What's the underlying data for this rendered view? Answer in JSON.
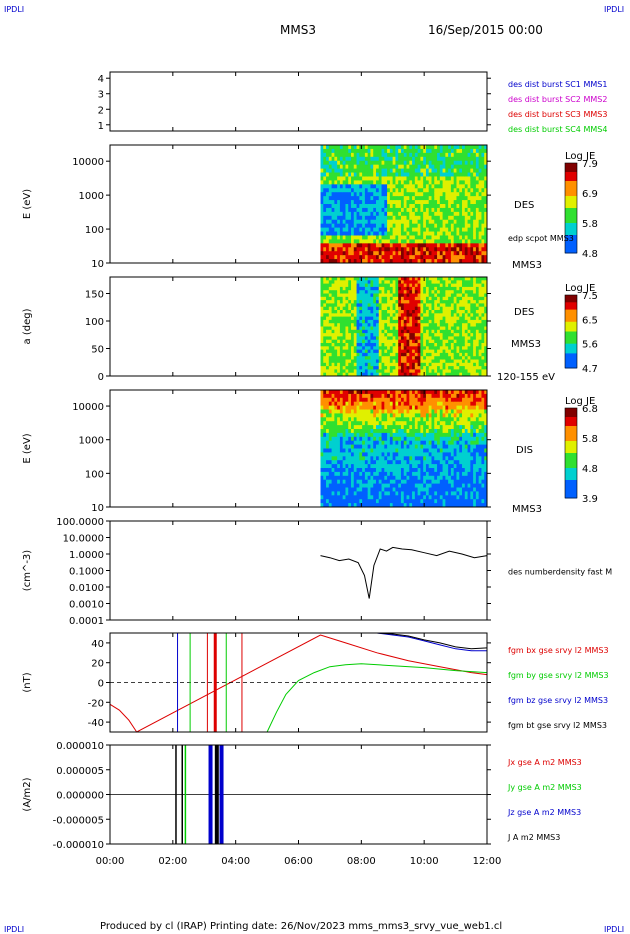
{
  "header": {
    "corner_left": "IPDLI",
    "corner_right": "IPDLI",
    "corner_bottom_left": "IPDLI",
    "corner_bottom_right": "IPDLI",
    "spacecraft": "MMS3",
    "date": "16/Sep/2015 00:00"
  },
  "footer": {
    "text": "Produced by cl (IRAP)   Printing date: 26/Nov/2023   mms_mms3_srvy_vue_web1.cl"
  },
  "colors": {
    "blue": "#0000cc",
    "magenta": "#cc00cc",
    "red": "#dd0000",
    "green": "#00cc00",
    "black": "#000000"
  },
  "chart_data": [
    {
      "id": "panel1",
      "type": "line",
      "y_ticks": [
        "4",
        "3",
        "2",
        "1"
      ],
      "ylim": [
        0.6,
        4.4
      ],
      "legend": [
        {
          "label": "des dist burst SC1 MMS1",
          "color": "#0000cc"
        },
        {
          "label": "des dist burst SC2 MMS2",
          "color": "#cc00cc"
        },
        {
          "label": "des dist burst SC3 MMS3",
          "color": "#dd0000"
        },
        {
          "label": "des dist burst SC4 MMS4",
          "color": "#00cc00"
        }
      ]
    },
    {
      "id": "panel2",
      "type": "heatmap",
      "ylabel": "E (eV)",
      "y_scale": "log",
      "y_ticks": [
        "10000",
        "1000",
        "100",
        "10"
      ],
      "ylim": [
        10,
        30000
      ],
      "data_start_hour": 6.7,
      "colorbar": {
        "title": "Log JE",
        "ticks": [
          "7.9",
          "6.9",
          "5.8",
          "4.8"
        ],
        "range": [
          4.8,
          7.9
        ]
      },
      "right_labels": [
        "DES",
        "edp scpot MMS3",
        "MMS3"
      ]
    },
    {
      "id": "panel3",
      "type": "heatmap",
      "ylabel": "a (deg)",
      "y_ticks": [
        "150",
        "100",
        "50",
        "0"
      ],
      "ylim": [
        0,
        180
      ],
      "data_start_hour": 6.7,
      "colorbar": {
        "title": "Log JE",
        "ticks": [
          "7.5",
          "6.5",
          "5.6",
          "4.7"
        ],
        "range": [
          4.7,
          7.5
        ]
      },
      "right_labels": [
        "DES",
        "MMS3",
        "120-155 eV"
      ]
    },
    {
      "id": "panel4",
      "type": "heatmap",
      "ylabel": "E (eV)",
      "y_scale": "log",
      "y_ticks": [
        "10000",
        "1000",
        "100",
        "10"
      ],
      "ylim": [
        10,
        30000
      ],
      "data_start_hour": 6.7,
      "colorbar": {
        "title": "Log JE",
        "ticks": [
          "6.8",
          "5.8",
          "4.8",
          "3.9"
        ],
        "range": [
          3.9,
          6.8
        ]
      },
      "right_labels": [
        "DIS",
        "MMS3"
      ]
    },
    {
      "id": "panel5",
      "type": "line",
      "ylabel": "(cm^-3)",
      "y_scale": "log",
      "y_ticks": [
        "100.0000",
        "10.0000",
        "1.0000",
        "0.1000",
        "0.0100",
        "0.0010",
        "0.0001"
      ],
      "ylim": [
        0.0001,
        100
      ],
      "series": [
        {
          "name": "des numberdensity fast M",
          "color": "#000000",
          "x": [
            6.7,
            7.0,
            7.3,
            7.6,
            7.9,
            8.1,
            8.25,
            8.4,
            8.6,
            8.8,
            9.0,
            9.3,
            9.6,
            10.0,
            10.4,
            10.8,
            11.2,
            11.6,
            12.0
          ],
          "y": [
            0.8,
            0.6,
            0.4,
            0.5,
            0.3,
            0.05,
            0.002,
            0.2,
            2.0,
            1.5,
            2.5,
            2.0,
            1.8,
            1.2,
            0.8,
            1.5,
            1.0,
            0.6,
            0.8
          ]
        }
      ]
    },
    {
      "id": "panel6",
      "type": "line",
      "ylabel": "(nT)",
      "y_ticks": [
        "40",
        "20",
        "0",
        "-20",
        "-40"
      ],
      "ylim": [
        -50,
        50
      ],
      "series": [
        {
          "name": "fgm bx gse srvy l2 MMS3",
          "color": "#dd0000",
          "x": [
            0.0,
            0.3,
            0.6,
            0.85,
            6.7,
            7.5,
            8.5,
            9.5,
            10.5,
            11.5,
            12.0
          ],
          "y": [
            -22,
            -28,
            -38,
            -50,
            48,
            40,
            30,
            22,
            16,
            10,
            8
          ]
        },
        {
          "name": "fgm by gse srvy l2 MMS3",
          "color": "#00cc00",
          "x": [
            5.0,
            5.3,
            5.6,
            6.0,
            6.5,
            7.0,
            7.5,
            8.0,
            9.0,
            10.0,
            11.0,
            12.0
          ],
          "y": [
            -50,
            -30,
            -12,
            2,
            10,
            16,
            18,
            19,
            17,
            15,
            12,
            10
          ]
        },
        {
          "name": "fgm bz gse srvy l2 MMS3",
          "color": "#0000cc",
          "x": [
            8.5,
            9.0,
            9.5,
            10.0,
            10.5,
            11.0,
            11.5,
            12.0
          ],
          "y": [
            50,
            48,
            46,
            42,
            38,
            34,
            32,
            32
          ]
        },
        {
          "name": "fgm bt gse srvy l2 MMS3",
          "color": "#000000",
          "x": [
            8.5,
            9.0,
            9.5,
            10.0,
            10.5,
            11.0,
            11.5,
            12.0
          ],
          "y": [
            50,
            49,
            47,
            43,
            40,
            36,
            34,
            35
          ]
        }
      ]
    },
    {
      "id": "panel7",
      "type": "line",
      "ylabel": "(A/m2)",
      "y_ticks": [
        "0.000010",
        "0.000005",
        "0.000000",
        "-0.000005",
        "-0.000010"
      ],
      "ylim": [
        -1e-05,
        1e-05
      ],
      "series": [
        {
          "name": "Jx gse A m2 MMS3",
          "color": "#dd0000"
        },
        {
          "name": "Jy gse A m2 MMS3",
          "color": "#00cc00"
        },
        {
          "name": "Jz gse A m2 MMS3",
          "color": "#0000cc"
        },
        {
          "name": "J A m2 MMS3",
          "color": "#000000"
        }
      ]
    }
  ],
  "x_axis": {
    "ticks": [
      "00:00",
      "02:00",
      "04:00",
      "06:00",
      "08:00",
      "10:00",
      "12:00"
    ],
    "xlim": [
      0,
      12
    ]
  }
}
